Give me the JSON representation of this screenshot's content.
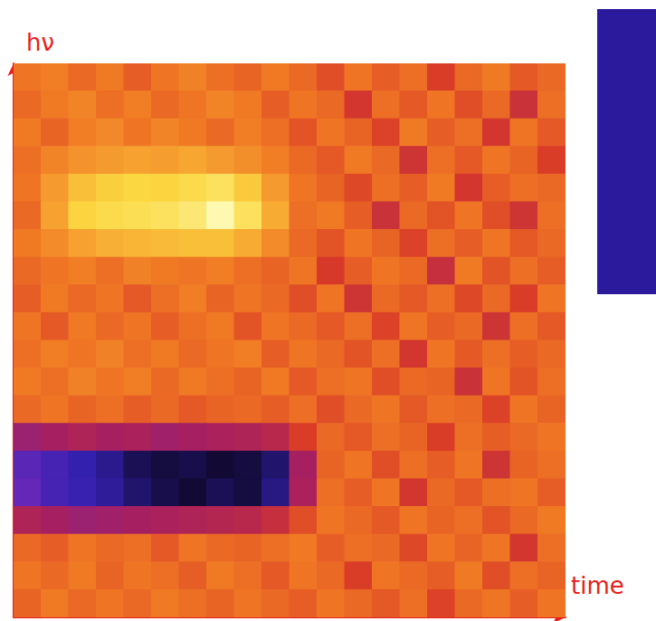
{
  "chart_data": {
    "type": "heatmap",
    "x_label": "time",
    "y_label": "hν",
    "xlim": [
      0,
      20
    ],
    "ylim": [
      0,
      20
    ],
    "tick_labels": false,
    "grid": false,
    "cells": [
      [
        0.62,
        0.64,
        0.6,
        0.63,
        0.58,
        0.62,
        0.65,
        0.61,
        0.59,
        0.63,
        0.6,
        0.55,
        0.62,
        0.58,
        0.61,
        0.52,
        0.6,
        0.63,
        0.57,
        0.6
      ],
      [
        0.6,
        0.63,
        0.66,
        0.61,
        0.64,
        0.6,
        0.62,
        0.66,
        0.63,
        0.58,
        0.62,
        0.6,
        0.5,
        0.61,
        0.57,
        0.62,
        0.55,
        0.6,
        0.48,
        0.61
      ],
      [
        0.63,
        0.59,
        0.64,
        0.67,
        0.62,
        0.66,
        0.63,
        0.6,
        0.64,
        0.61,
        0.56,
        0.62,
        0.59,
        0.53,
        0.63,
        0.58,
        0.61,
        0.5,
        0.62,
        0.57
      ],
      [
        0.61,
        0.66,
        0.7,
        0.72,
        0.74,
        0.73,
        0.75,
        0.72,
        0.69,
        0.64,
        0.6,
        0.57,
        0.63,
        0.6,
        0.49,
        0.61,
        0.57,
        0.62,
        0.59,
        0.52
      ],
      [
        0.62,
        0.72,
        0.8,
        0.83,
        0.85,
        0.84,
        0.86,
        0.88,
        0.82,
        0.72,
        0.62,
        0.59,
        0.54,
        0.61,
        0.58,
        0.63,
        0.5,
        0.58,
        0.61,
        0.6
      ],
      [
        0.6,
        0.74,
        0.84,
        0.86,
        0.87,
        0.88,
        0.9,
        0.96,
        0.88,
        0.76,
        0.61,
        0.63,
        0.58,
        0.48,
        0.6,
        0.56,
        0.62,
        0.55,
        0.49,
        0.61
      ],
      [
        0.63,
        0.68,
        0.74,
        0.77,
        0.78,
        0.79,
        0.8,
        0.8,
        0.76,
        0.68,
        0.6,
        0.56,
        0.62,
        0.59,
        0.53,
        0.61,
        0.58,
        0.62,
        0.57,
        0.6
      ],
      [
        0.6,
        0.62,
        0.64,
        0.61,
        0.65,
        0.63,
        0.62,
        0.64,
        0.61,
        0.59,
        0.62,
        0.51,
        0.58,
        0.62,
        0.6,
        0.47,
        0.63,
        0.56,
        0.61,
        0.58
      ],
      [
        0.58,
        0.63,
        0.6,
        0.62,
        0.57,
        0.61,
        0.64,
        0.59,
        0.62,
        0.6,
        0.55,
        0.62,
        0.49,
        0.6,
        0.57,
        0.61,
        0.54,
        0.6,
        0.52,
        0.62
      ],
      [
        0.62,
        0.57,
        0.63,
        0.6,
        0.62,
        0.58,
        0.61,
        0.63,
        0.56,
        0.62,
        0.6,
        0.57,
        0.61,
        0.53,
        0.62,
        0.58,
        0.6,
        0.49,
        0.61,
        0.57
      ],
      [
        0.61,
        0.64,
        0.62,
        0.65,
        0.61,
        0.63,
        0.6,
        0.62,
        0.64,
        0.58,
        0.62,
        0.6,
        0.56,
        0.61,
        0.5,
        0.62,
        0.57,
        0.61,
        0.58,
        0.6
      ],
      [
        0.63,
        0.61,
        0.65,
        0.62,
        0.64,
        0.6,
        0.63,
        0.61,
        0.59,
        0.63,
        0.57,
        0.61,
        0.62,
        0.55,
        0.6,
        0.59,
        0.48,
        0.62,
        0.56,
        0.61
      ],
      [
        0.6,
        0.62,
        0.59,
        0.61,
        0.58,
        0.6,
        0.57,
        0.59,
        0.6,
        0.58,
        0.61,
        0.55,
        0.6,
        0.62,
        0.57,
        0.61,
        0.6,
        0.53,
        0.62,
        0.59
      ],
      [
        0.38,
        0.4,
        0.42,
        0.4,
        0.41,
        0.39,
        0.4,
        0.41,
        0.42,
        0.44,
        0.52,
        0.6,
        0.57,
        0.61,
        0.59,
        0.52,
        0.61,
        0.58,
        0.6,
        0.62
      ],
      [
        0.26,
        0.22,
        0.18,
        0.15,
        0.1,
        0.08,
        0.09,
        0.07,
        0.08,
        0.12,
        0.4,
        0.59,
        0.62,
        0.55,
        0.61,
        0.58,
        0.62,
        0.49,
        0.59,
        0.61
      ],
      [
        0.28,
        0.22,
        0.19,
        0.16,
        0.12,
        0.09,
        0.07,
        0.1,
        0.08,
        0.14,
        0.41,
        0.61,
        0.58,
        0.62,
        0.5,
        0.6,
        0.57,
        0.61,
        0.62,
        0.58
      ],
      [
        0.42,
        0.4,
        0.38,
        0.39,
        0.4,
        0.41,
        0.42,
        0.43,
        0.44,
        0.47,
        0.55,
        0.62,
        0.6,
        0.57,
        0.62,
        0.59,
        0.61,
        0.56,
        0.6,
        0.63
      ],
      [
        0.6,
        0.58,
        0.62,
        0.6,
        0.61,
        0.57,
        0.62,
        0.6,
        0.59,
        0.61,
        0.63,
        0.58,
        0.61,
        0.6,
        0.54,
        0.62,
        0.59,
        0.62,
        0.5,
        0.61
      ],
      [
        0.62,
        0.6,
        0.63,
        0.59,
        0.62,
        0.61,
        0.58,
        0.63,
        0.61,
        0.57,
        0.62,
        0.6,
        0.52,
        0.62,
        0.6,
        0.58,
        0.63,
        0.55,
        0.61,
        0.59
      ],
      [
        0.59,
        0.63,
        0.6,
        0.62,
        0.6,
        0.63,
        0.61,
        0.59,
        0.62,
        0.6,
        0.58,
        0.62,
        0.6,
        0.57,
        0.61,
        0.53,
        0.6,
        0.62,
        0.58,
        0.62
      ]
    ]
  }
}
